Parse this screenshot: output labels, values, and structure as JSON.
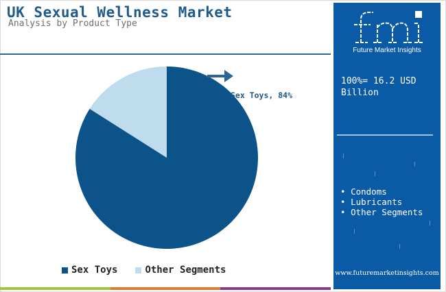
{
  "header": {
    "title": "UK Sexual Wellness Market",
    "subtitle": "Analysis by Product Type"
  },
  "chart_data": {
    "type": "pie",
    "slices": [
      {
        "name": "Sex Toys",
        "value": 84,
        "color": "#0b5389"
      },
      {
        "name": "Other Segments",
        "value": 16,
        "color": "#bfdcee"
      }
    ],
    "annotation": "Sex Toys, 84%",
    "legend_position": "bottom"
  },
  "legend": {
    "items": [
      {
        "label": "Sex Toys",
        "color": "#0b5389"
      },
      {
        "label": "Other Segments",
        "color": "#bfdcee"
      }
    ]
  },
  "side_panel": {
    "logo_text": "fmi",
    "logo_name": "Future Market Insights",
    "total": "100%= 16.2 USD Billion",
    "segments": [
      "Condoms",
      "Lubricants",
      "Other Segments"
    ],
    "website": "www.futuremarketinsights.com",
    "background": "#0b5aa6"
  },
  "colors": {
    "title": "#1f5a8c",
    "arrow": "#2b6696",
    "bottom_bar": [
      "#9bc53d",
      "#e07a2f",
      "#8b3a8b"
    ]
  },
  "icons": {
    "arrow": "arrow-right-icon",
    "logo": "fmi-logo"
  }
}
